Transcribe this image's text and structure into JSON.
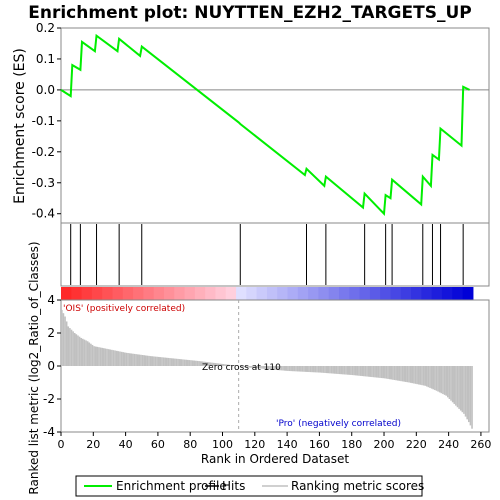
{
  "chart_data": {
    "type": "line",
    "title": "Enrichment plot: NUYTTEN_EZH2_TARGETS_UP",
    "xlabel": "Rank in Ordered Dataset",
    "top_panel": {
      "ylabel": "Enrichment score (ES)",
      "ylim": [
        -0.43,
        0.2
      ],
      "yticks": [
        "0.2",
        "0.1",
        "0.0",
        "-0.1",
        "-0.2",
        "-0.3",
        "-0.4"
      ],
      "ytick_values": [
        0.2,
        0.1,
        0.0,
        -0.1,
        -0.2,
        -0.3,
        -0.4
      ],
      "series": [
        {
          "name": "Enrichment profile",
          "color": "#00ee00",
          "x": [
            0,
            6,
            7,
            12,
            13,
            21,
            22,
            35,
            36,
            49,
            50,
            110,
            111,
            151,
            152,
            163,
            164,
            187,
            188,
            200,
            201,
            204,
            205,
            223,
            224,
            229,
            230,
            234,
            235,
            248,
            249,
            253
          ],
          "y": [
            0.0,
            -0.02,
            0.08,
            0.065,
            0.155,
            0.125,
            0.175,
            0.125,
            0.165,
            0.11,
            0.14,
            -0.105,
            -0.11,
            -0.275,
            -0.255,
            -0.31,
            -0.28,
            -0.38,
            -0.335,
            -0.4,
            -0.34,
            -0.35,
            -0.29,
            -0.37,
            -0.28,
            -0.31,
            -0.21,
            -0.225,
            -0.125,
            -0.18,
            0.01,
            0.0
          ]
        }
      ]
    },
    "hits": [
      6,
      12,
      22,
      36,
      50,
      111,
      152,
      164,
      188,
      201,
      205,
      224,
      230,
      235,
      249
    ],
    "middle_panel": {
      "label_pos": "'OIS' (positively correlated)",
      "label_neg": "'Pro' (negatively correlated)",
      "color_pos": "#cc0000",
      "color_neg": "#0000cc"
    },
    "bottom_panel": {
      "ylabel": "Ranked list metric (log2_Ratio_of_Classes)",
      "ylim": [
        -4,
        4
      ],
      "yticks": [
        "4",
        "2",
        "0",
        "-2",
        "-4"
      ],
      "ytick_values": [
        4,
        2,
        0,
        -2,
        -4
      ],
      "zero_cross_label": "Zero cross at 110",
      "zero_cross": 110,
      "metric_profile": [
        [
          0,
          3.4
        ],
        [
          2,
          3.0
        ],
        [
          4,
          2.4
        ],
        [
          8,
          2.0
        ],
        [
          12,
          1.7
        ],
        [
          16,
          1.5
        ],
        [
          20,
          1.2
        ],
        [
          30,
          1.0
        ],
        [
          40,
          0.8
        ],
        [
          55,
          0.6
        ],
        [
          70,
          0.45
        ],
        [
          85,
          0.3
        ],
        [
          100,
          0.12
        ],
        [
          110,
          0.0
        ],
        [
          111,
          -0.05
        ],
        [
          140,
          -0.3
        ],
        [
          160,
          -0.4
        ],
        [
          180,
          -0.55
        ],
        [
          200,
          -0.75
        ],
        [
          215,
          -1.0
        ],
        [
          225,
          -1.2
        ],
        [
          232,
          -1.5
        ],
        [
          238,
          -1.8
        ],
        [
          244,
          -2.4
        ],
        [
          249,
          -2.9
        ],
        [
          252,
          -3.4
        ],
        [
          254,
          -3.8
        ]
      ]
    },
    "xticks": [
      "0",
      "20",
      "40",
      "60",
      "80",
      "100",
      "120",
      "140",
      "160",
      "180",
      "200",
      "220",
      "240",
      "260"
    ],
    "xtick_values": [
      0,
      20,
      40,
      60,
      80,
      100,
      120,
      140,
      160,
      180,
      200,
      220,
      240,
      260
    ],
    "xlim": [
      0,
      265
    ],
    "n_genes": 255,
    "legend": [
      {
        "label": "Enrichment profile",
        "color": "#00ee00"
      },
      {
        "label": "Hits",
        "color": "#000000"
      },
      {
        "label": "Ranking metric scores",
        "color": "#c0c0c0"
      }
    ]
  }
}
